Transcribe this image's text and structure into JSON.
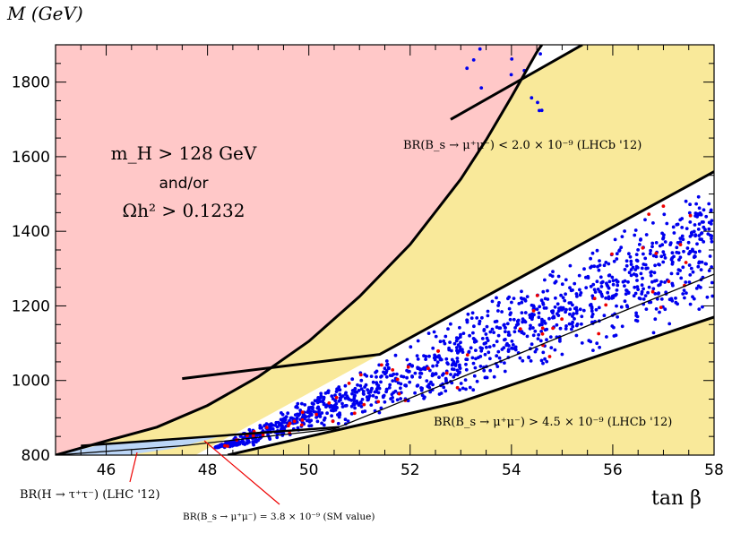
{
  "chart_data": {
    "type": "scatter",
    "title": "",
    "xlabel": "tan β",
    "ylabel": "M (GeV)",
    "xlim": [
      45,
      58
    ],
    "ylim": [
      800,
      1900
    ],
    "x_ticks": [
      46,
      48,
      50,
      52,
      54,
      56,
      58
    ],
    "y_ticks": [
      800,
      1000,
      1200,
      1400,
      1600,
      1800
    ],
    "x_tick_labels": [
      "46",
      "48",
      "50",
      "52",
      "54",
      "56",
      "58"
    ],
    "y_tick_labels": [
      "800",
      "1000",
      "1200",
      "1400",
      "1600",
      "1800"
    ],
    "regions": {
      "excluded_left": {
        "color": "#ffc8c8",
        "label_line1": "m_H > 128 GeV",
        "label_line2": "and/or",
        "label_line3": "Ωh² > 0.1232",
        "boundary": [
          [
            45,
            800
          ],
          [
            46,
            838
          ],
          [
            47,
            875
          ],
          [
            48,
            933
          ],
          [
            49,
            1010
          ],
          [
            50,
            1105
          ],
          [
            51,
            1225
          ],
          [
            52,
            1365
          ],
          [
            52.5,
            1452
          ],
          [
            53,
            1540
          ],
          [
            53.5,
            1645
          ],
          [
            54,
            1760
          ],
          [
            54.5,
            1880
          ],
          [
            54.6,
            1900
          ]
        ]
      },
      "bs_upper": {
        "color": "#f9e99a",
        "label": "BR(B_s → μ⁺μ⁻) < 2.0 × 10⁻⁹ (LHCb '12)",
        "upper_edge": [
          [
            51.4,
            1070
          ],
          [
            58,
            1560
          ]
        ],
        "lower_edge": [
          [
            52.8,
            1700
          ],
          [
            55.4,
            1900
          ]
        ]
      },
      "bs_lower": {
        "color": "#f9e99a",
        "label": "BR(B_s → μ⁺μ⁻) > 4.5 × 10⁻⁹ (LHCb '12)",
        "edge": [
          [
            48.4,
            800
          ],
          [
            49.2,
            825
          ],
          [
            53,
            943
          ],
          [
            58,
            1170
          ]
        ]
      },
      "lhc_tau": {
        "color": "#bcd6f7",
        "label": "BR(H → τ⁺τ⁻) (LHC '12)",
        "polygon": [
          [
            45,
            800
          ],
          [
            46.4,
            800
          ],
          [
            47.3,
            817
          ],
          [
            48.4,
            855
          ],
          [
            45.8,
            825
          ]
        ]
      }
    },
    "sm_line": {
      "label": "BR(B_s → μ⁺μ⁻) = 3.8 × 10⁻⁹ (SM value)",
      "points": [
        [
          45,
          800
        ],
        [
          47.5,
          825
        ],
        [
          50.5,
          870
        ],
        [
          58,
          1285
        ]
      ]
    },
    "lhc_upper_line": [
      [
        45.5,
        825
      ],
      [
        50.6,
        875
      ]
    ],
    "series": [
      {
        "name": "points",
        "color": "#0000ee",
        "count": 1300
      },
      {
        "name": "highlighted",
        "color": "#ee0000",
        "count": 60
      }
    ]
  }
}
